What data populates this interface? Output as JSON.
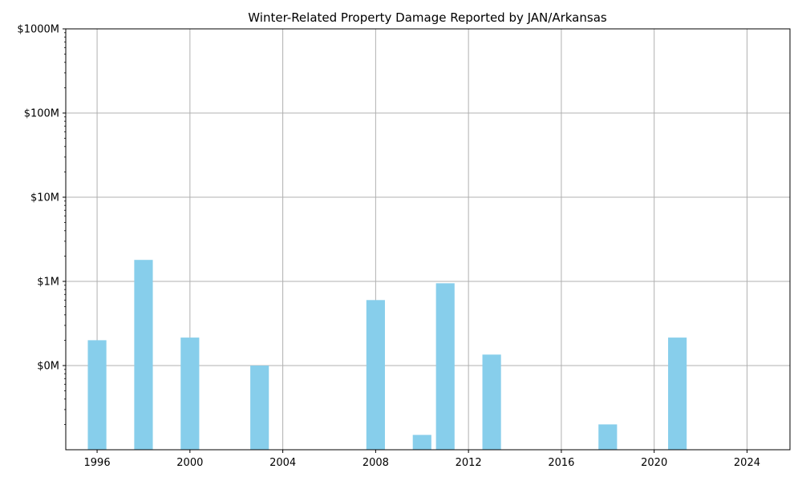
{
  "chart_data": {
    "type": "bar",
    "title": "Winter-Related Property Damage Reported by JAN/Arkansas",
    "xlabel": "",
    "ylabel": "",
    "yscale": "log",
    "ylim": [
      10000,
      1000000000
    ],
    "xlim": [
      1994.65,
      2025.85
    ],
    "grid": true,
    "bar_color": "#87ceeb",
    "x_ticks": [
      {
        "value": 1996,
        "label": "1996"
      },
      {
        "value": 2000,
        "label": "2000"
      },
      {
        "value": 2004,
        "label": "2004"
      },
      {
        "value": 2008,
        "label": "2008"
      },
      {
        "value": 2012,
        "label": "2012"
      },
      {
        "value": 2016,
        "label": "2016"
      },
      {
        "value": 2020,
        "label": "2020"
      },
      {
        "value": 2024,
        "label": "2024"
      }
    ],
    "y_ticks": [
      {
        "value": 100000,
        "label": "$0M"
      },
      {
        "value": 1000000,
        "label": "$1M"
      },
      {
        "value": 10000000,
        "label": "$10M"
      },
      {
        "value": 100000000,
        "label": "$100M"
      },
      {
        "value": 1000000000,
        "label": "$1000M"
      }
    ],
    "x": [
      1996,
      1998,
      2000,
      2003,
      2008,
      2010,
      2011,
      2013,
      2018,
      2021
    ],
    "values": [
      200000,
      1800000,
      215000,
      100000,
      600000,
      15000,
      950000,
      135000,
      20000,
      215000
    ]
  }
}
